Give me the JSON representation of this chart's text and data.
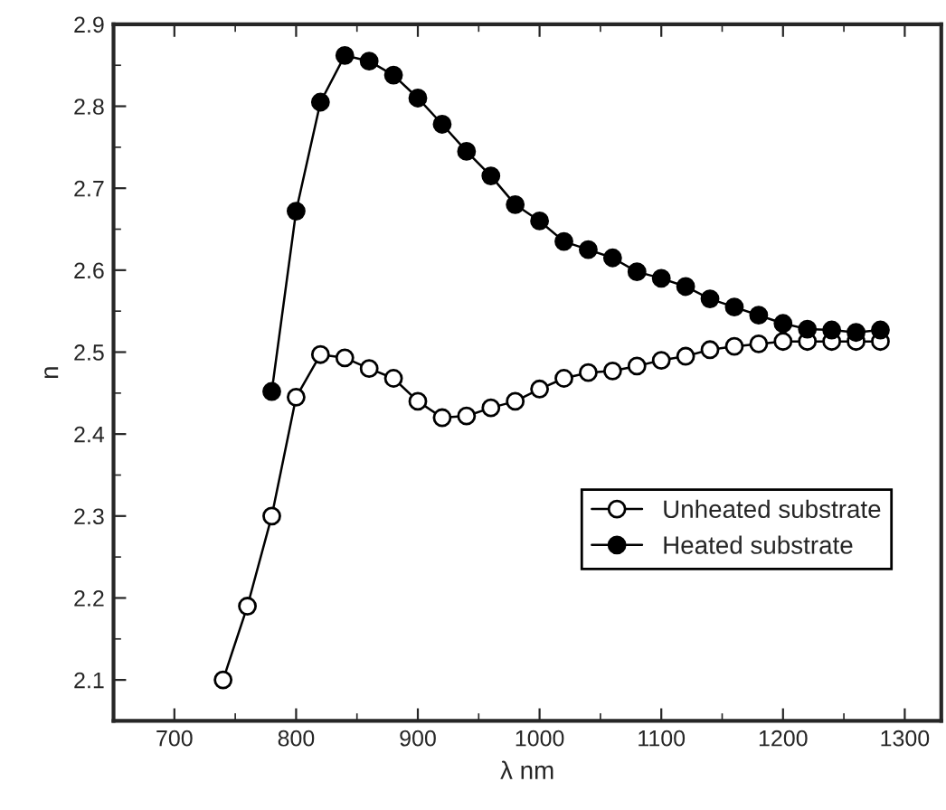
{
  "chart_data": {
    "type": "line",
    "xlabel": "λ nm",
    "ylabel": "n",
    "xlim": [
      650,
      1330
    ],
    "ylim": [
      2.05,
      2.9
    ],
    "xticks": [
      700,
      800,
      900,
      1000,
      1100,
      1200,
      1300
    ],
    "yticks": [
      2.1,
      2.2,
      2.3,
      2.4,
      2.5,
      2.6,
      2.7,
      2.8,
      2.9
    ],
    "grid": false,
    "legend": "bottom right",
    "line_style": "solid",
    "series": [
      {
        "name": "Unheated substrate",
        "color": "#000000",
        "marker": "open circle",
        "x": [
          740,
          760,
          780,
          800,
          820,
          840,
          860,
          880,
          900,
          920,
          940,
          960,
          980,
          1000,
          1020,
          1040,
          1060,
          1080,
          1100,
          1120,
          1140,
          1160,
          1180,
          1200,
          1220,
          1240,
          1260,
          1280
        ],
        "values": [
          2.1,
          2.19,
          2.3,
          2.445,
          2.497,
          2.493,
          2.48,
          2.468,
          2.44,
          2.42,
          2.422,
          2.432,
          2.44,
          2.455,
          2.468,
          2.475,
          2.477,
          2.483,
          2.49,
          2.495,
          2.503,
          2.507,
          2.51,
          2.513,
          2.513,
          2.513,
          2.513,
          2.513
        ]
      },
      {
        "name": "Heated substrate",
        "color": "#000000",
        "marker": "circle",
        "x": [
          780,
          800,
          820,
          840,
          860,
          880,
          900,
          920,
          940,
          960,
          980,
          1000,
          1020,
          1040,
          1060,
          1080,
          1100,
          1120,
          1140,
          1160,
          1180,
          1200,
          1220,
          1240,
          1260,
          1280
        ],
        "values": [
          2.452,
          2.672,
          2.805,
          2.862,
          2.855,
          2.838,
          2.81,
          2.778,
          2.745,
          2.715,
          2.68,
          2.66,
          2.635,
          2.625,
          2.615,
          2.598,
          2.59,
          2.58,
          2.565,
          2.555,
          2.545,
          2.535,
          2.528,
          2.527,
          2.524,
          2.527
        ]
      }
    ]
  }
}
